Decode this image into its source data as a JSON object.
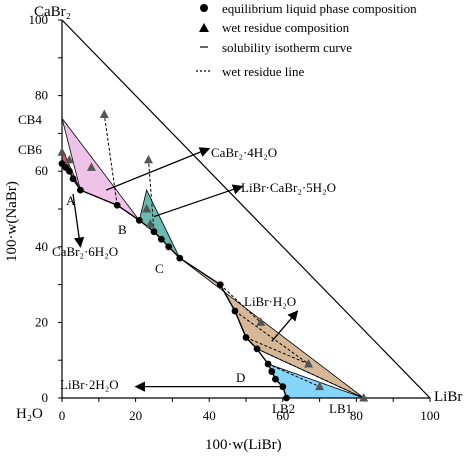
{
  "chart_data": {
    "type": "scatter",
    "corners": {
      "top": "CaBr₂",
      "bottom_left": "H₂O",
      "bottom_right": "LiBr"
    },
    "xlabel": "100·w(LiBr)",
    "ylabel": "100·w(NaBr)",
    "xlim": [
      0,
      100
    ],
    "ylim": [
      0,
      100
    ],
    "x_ticks": [
      "0",
      "20",
      "40",
      "60",
      "80",
      "100"
    ],
    "y_ticks": [
      "0",
      "20",
      "40",
      "60",
      "80",
      "100"
    ],
    "legend": {
      "position": "top-right",
      "items": [
        {
          "marker": "circle",
          "label": "equilibrium liquid phase composition"
        },
        {
          "marker": "triangle",
          "label": "wet residue composition"
        },
        {
          "marker": "dash",
          "label": "solubility isotherm curve"
        },
        {
          "marker": "dotted",
          "label": "wet residue line"
        }
      ]
    },
    "series": [
      {
        "name": "equilibrium liquid phase composition",
        "points": [
          [
            0,
            62
          ],
          [
            1,
            61
          ],
          [
            2,
            60
          ],
          [
            3,
            58
          ],
          [
            5,
            55
          ],
          [
            15,
            51
          ],
          [
            21,
            47
          ],
          [
            25,
            44
          ],
          [
            27,
            42
          ],
          [
            29,
            40
          ],
          [
            32,
            37
          ],
          [
            43,
            30
          ],
          [
            47,
            23
          ],
          [
            50,
            16
          ],
          [
            53,
            13
          ],
          [
            56,
            9
          ],
          [
            57,
            7
          ],
          [
            58,
            5
          ],
          [
            60,
            3
          ],
          [
            61,
            0
          ]
        ]
      },
      {
        "name": "wet residue composition",
        "points": [
          [
            0,
            65
          ],
          [
            8,
            61
          ],
          [
            11.5,
            75
          ],
          [
            2,
            63
          ],
          [
            23,
            50
          ],
          [
            23.5,
            63
          ],
          [
            24,
            46
          ],
          [
            54,
            20
          ],
          [
            67,
            9
          ],
          [
            70,
            3
          ],
          [
            82,
            0
          ]
        ]
      }
    ],
    "point_labels": [
      {
        "text": "CB4",
        "at": [
          0,
          74
        ]
      },
      {
        "text": "CB6",
        "at": [
          0,
          66
        ]
      },
      {
        "text": "A",
        "at": [
          3,
          55
        ]
      },
      {
        "text": "B",
        "at": [
          21,
          47
        ]
      },
      {
        "text": "C",
        "at": [
          32,
          37
        ]
      },
      {
        "text": "D",
        "at": [
          56,
          9
        ]
      },
      {
        "text": "LB2",
        "at": [
          61,
          0
        ]
      },
      {
        "text": "LB1",
        "at": [
          82,
          0
        ]
      }
    ],
    "solid_phases": [
      {
        "label": "CaBr₂·4H₂O",
        "color": "#e8a8e0"
      },
      {
        "label": "CaBr₂·6H₂O",
        "color": "#c8102e"
      },
      {
        "label": "LiBr·CaBr₂·5H₂O",
        "color": "#2a9d8f"
      },
      {
        "label": "LiBr·H₂O",
        "color": "#c49a6c"
      },
      {
        "label": "LiBr·2H₂O",
        "color": "#4fc3f7"
      }
    ]
  }
}
